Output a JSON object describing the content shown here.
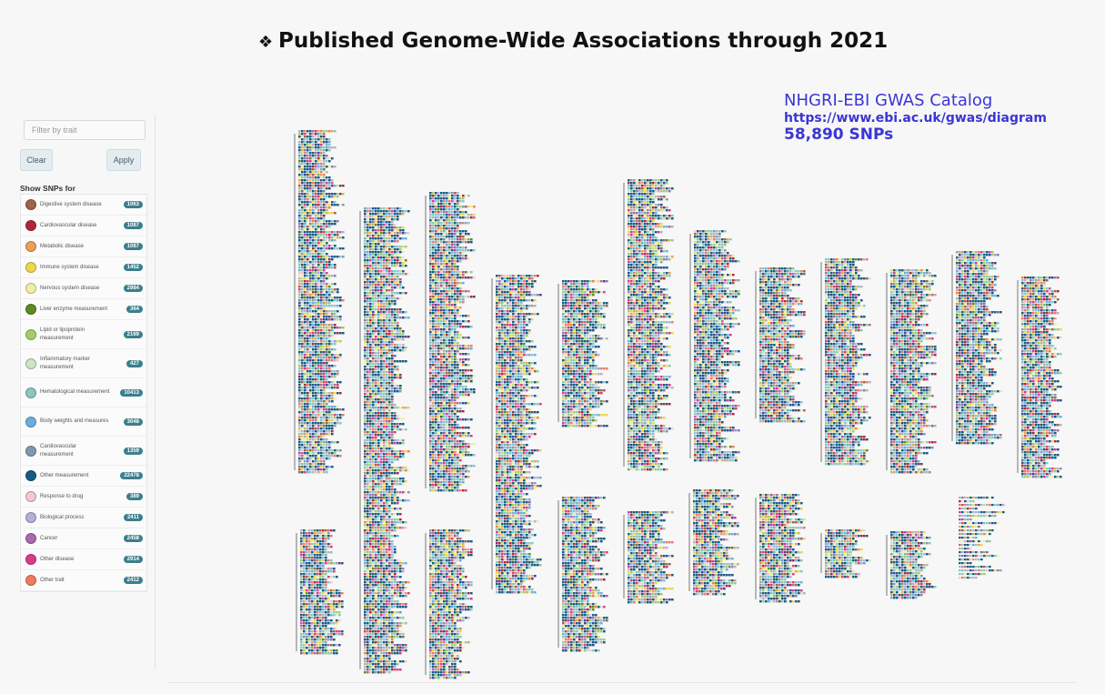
{
  "slide": {
    "bullet": "❖",
    "title": "Published Genome-Wide Associations through 2021"
  },
  "catalog": {
    "name": "NHGRI-EBI GWAS Catalog",
    "url": "https://www.ebi.ac.uk/gwas/diagram",
    "snps": "58,890 SNPs"
  },
  "sidebar": {
    "filter_placeholder": "Filter by trait",
    "clear_label": "Clear",
    "apply_label": "Apply",
    "show_label": "Show SNPs for",
    "items": [
      {
        "label": "Digestive system disease",
        "count": "1063",
        "color": "#a0614a"
      },
      {
        "label": "Cardiovascular disease",
        "count": "1087",
        "color": "#b0263a"
      },
      {
        "label": "Metabolic disease",
        "count": "1087",
        "color": "#e8a15a"
      },
      {
        "label": "Immune system disease",
        "count": "1452",
        "color": "#ecd84a"
      },
      {
        "label": "Nervous system disease",
        "count": "2984",
        "color": "#f0eea0"
      },
      {
        "label": "Liver enzyme measurement",
        "count": "364",
        "color": "#5f8a22"
      },
      {
        "label": "Lipid or lipoprotein measurement",
        "count": "2169",
        "color": "#a6cc6a"
      },
      {
        "label": "Inflammatory marker measurement",
        "count": "427",
        "color": "#cfe4c4"
      },
      {
        "label": "Hematological measurement",
        "count": "10413",
        "color": "#8cc6c0"
      },
      {
        "label": "Body weights and measures",
        "count": "3048",
        "color": "#6aaee0"
      },
      {
        "label": "Cardiovascular measurement",
        "count": "1359",
        "color": "#7f98b0"
      },
      {
        "label": "Other measurement",
        "count": "22478",
        "color": "#185a86"
      },
      {
        "label": "Response to drug",
        "count": "389",
        "color": "#f2c6d6"
      },
      {
        "label": "Biological process",
        "count": "2411",
        "color": "#b7aed6"
      },
      {
        "label": "Cancer",
        "count": "2458",
        "color": "#a86aac"
      },
      {
        "label": "Other disease",
        "count": "2914",
        "color": "#dc3a8a"
      },
      {
        "label": "Other trait",
        "count": "2412",
        "color": "#f07a62"
      }
    ]
  }
}
